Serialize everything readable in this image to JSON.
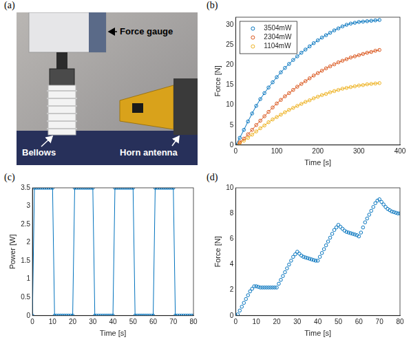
{
  "photo": {
    "panel": "(a)",
    "labels": [
      "Force gauge",
      "Bellows",
      "Horn antenna"
    ]
  },
  "chart_data": [
    {
      "panel": "(b)",
      "type": "line",
      "marker": "circle",
      "line_style": "solid",
      "grid": false,
      "legend": "upper left",
      "x_label": "Time [s]",
      "y_label": "Force [N]",
      "xlim": [
        0,
        400
      ],
      "xticks": [
        0,
        100,
        200,
        300,
        400
      ],
      "ylim": [
        0,
        32
      ],
      "yticks": [
        0,
        5,
        10,
        15,
        20,
        25,
        30
      ],
      "x": [
        0,
        10,
        20,
        30,
        40,
        50,
        60,
        70,
        80,
        90,
        100,
        110,
        120,
        130,
        140,
        150,
        160,
        170,
        180,
        190,
        200,
        210,
        220,
        230,
        240,
        250,
        260,
        270,
        280,
        290,
        300,
        310,
        320,
        330,
        340,
        350
      ],
      "series": [
        {
          "name": "3504mW",
          "color": "#0072BD",
          "values": [
            0,
            1.8,
            3.8,
            5.9,
            7.9,
            9.8,
            11.5,
            13.0,
            14.4,
            15.7,
            17.0,
            18.2,
            19.3,
            20.3,
            21.3,
            22.2,
            23.1,
            23.9,
            24.7,
            25.5,
            26.2,
            26.9,
            27.5,
            28.1,
            28.7,
            29.2,
            29.7,
            30.1,
            30.4,
            30.6,
            30.8,
            30.9,
            31.0,
            31.1,
            31.2,
            31.3
          ]
        },
        {
          "name": "2304mW",
          "color": "#D95319",
          "values": [
            0,
            0.7,
            1.6,
            2.7,
            3.8,
            5.0,
            6.1,
            7.2,
            8.3,
            9.4,
            10.4,
            11.3,
            12.2,
            13.0,
            13.8,
            14.6,
            15.3,
            16.0,
            16.7,
            17.4,
            18.0,
            18.6,
            19.2,
            19.7,
            20.2,
            20.7,
            21.1,
            21.5,
            21.9,
            22.2,
            22.5,
            22.8,
            23.1,
            23.3,
            23.6,
            23.8
          ]
        },
        {
          "name": "1104mW",
          "color": "#EDB120",
          "values": [
            0,
            0.5,
            1.1,
            1.8,
            2.6,
            3.4,
            4.2,
            4.9,
            5.7,
            6.4,
            7.0,
            7.6,
            8.2,
            8.8,
            9.3,
            9.8,
            10.3,
            10.8,
            11.2,
            11.7,
            12.1,
            12.5,
            12.8,
            13.2,
            13.5,
            13.8,
            14.1,
            14.3,
            14.5,
            14.7,
            14.9,
            15.0,
            15.2,
            15.3,
            15.4,
            15.5
          ]
        }
      ]
    },
    {
      "panel": "(c)",
      "type": "line",
      "marker": "circle",
      "line_style": "solid",
      "grid": false,
      "x_label": "Time [s]",
      "y_label": "Power [W]",
      "xlim": [
        0,
        80
      ],
      "xticks": [
        0,
        10,
        20,
        30,
        40,
        50,
        60,
        70,
        80
      ],
      "ylim": [
        0,
        3.5
      ],
      "yticks": [
        0,
        0.5,
        1,
        1.5,
        2,
        2.5,
        3,
        3.5
      ],
      "x": [
        0,
        1,
        2,
        3,
        4,
        5,
        6,
        7,
        8,
        9,
        10,
        11,
        12,
        13,
        14,
        15,
        16,
        17,
        18,
        19,
        20,
        21,
        22,
        23,
        24,
        25,
        26,
        27,
        28,
        29,
        30,
        31,
        32,
        33,
        34,
        35,
        36,
        37,
        38,
        39,
        40,
        41,
        42,
        43,
        44,
        45,
        46,
        47,
        48,
        49,
        50,
        51,
        52,
        53,
        54,
        55,
        56,
        57,
        58,
        59,
        60,
        61,
        62,
        63,
        64,
        65,
        66,
        67,
        68,
        69,
        70,
        71,
        72,
        73,
        74,
        75,
        76,
        77,
        78,
        79,
        80
      ],
      "series": [
        {
          "color": "#0072BD",
          "values": [
            0,
            3.5,
            3.5,
            3.5,
            3.5,
            3.5,
            3.5,
            3.5,
            3.5,
            3.5,
            3.5,
            0,
            0,
            0,
            0,
            0,
            0,
            0,
            0,
            0,
            0,
            3.5,
            3.5,
            3.5,
            3.5,
            3.5,
            3.5,
            3.5,
            3.5,
            3.5,
            3.5,
            0,
            0,
            0,
            0,
            0,
            0,
            0,
            0,
            0,
            0,
            3.5,
            3.5,
            3.5,
            3.5,
            3.5,
            3.5,
            3.5,
            3.5,
            3.5,
            3.5,
            0,
            0,
            0,
            0,
            0,
            0,
            0,
            0,
            0,
            0,
            3.5,
            3.5,
            3.5,
            3.5,
            3.5,
            3.5,
            3.5,
            3.5,
            3.5,
            3.5,
            0,
            0,
            0,
            0,
            0,
            0,
            0,
            0,
            0,
            0
          ]
        }
      ]
    },
    {
      "panel": "(d)",
      "type": "scatter",
      "marker": "circle",
      "grid": false,
      "x_label": "Time [s]",
      "y_label": "Force [N]",
      "xlim": [
        0,
        80
      ],
      "xticks": [
        0,
        10,
        20,
        30,
        40,
        50,
        60,
        70,
        80
      ],
      "ylim": [
        0,
        10
      ],
      "yticks": [
        0,
        2,
        4,
        6,
        8,
        10
      ],
      "x": [
        0,
        1,
        2,
        3,
        4,
        5,
        6,
        7,
        8,
        9,
        10,
        11,
        12,
        13,
        14,
        15,
        16,
        17,
        18,
        19,
        20,
        21,
        22,
        23,
        24,
        25,
        26,
        27,
        28,
        29,
        30,
        31,
        32,
        33,
        34,
        35,
        36,
        37,
        38,
        39,
        40,
        41,
        42,
        43,
        44,
        45,
        46,
        47,
        48,
        49,
        50,
        51,
        52,
        53,
        54,
        55,
        56,
        57,
        58,
        59,
        60,
        61,
        62,
        63,
        64,
        65,
        66,
        67,
        68,
        69,
        70,
        71,
        72,
        73,
        74,
        75,
        76,
        77,
        78,
        79,
        80
      ],
      "series": [
        {
          "color": "#0072BD",
          "values": [
            0,
            0.1,
            0.4,
            0.7,
            1.0,
            1.3,
            1.6,
            1.9,
            2.1,
            2.3,
            2.3,
            2.25,
            2.2,
            2.2,
            2.2,
            2.2,
            2.2,
            2.2,
            2.2,
            2.2,
            2.2,
            2.5,
            2.8,
            3.1,
            3.4,
            3.7,
            4.0,
            4.3,
            4.6,
            4.8,
            5.0,
            4.85,
            4.7,
            4.6,
            4.55,
            4.5,
            4.45,
            4.4,
            4.35,
            4.3,
            4.3,
            4.6,
            4.9,
            5.2,
            5.5,
            5.8,
            6.1,
            6.4,
            6.7,
            6.9,
            7.1,
            6.95,
            6.8,
            6.65,
            6.55,
            6.5,
            6.45,
            6.4,
            6.35,
            6.3,
            6.2,
            6.5,
            6.9,
            7.3,
            7.6,
            7.9,
            8.2,
            8.5,
            8.8,
            9.0,
            9.1,
            8.9,
            8.7,
            8.5,
            8.35,
            8.25,
            8.15,
            8.1,
            8.05,
            8.0,
            8.0
          ]
        }
      ]
    }
  ]
}
